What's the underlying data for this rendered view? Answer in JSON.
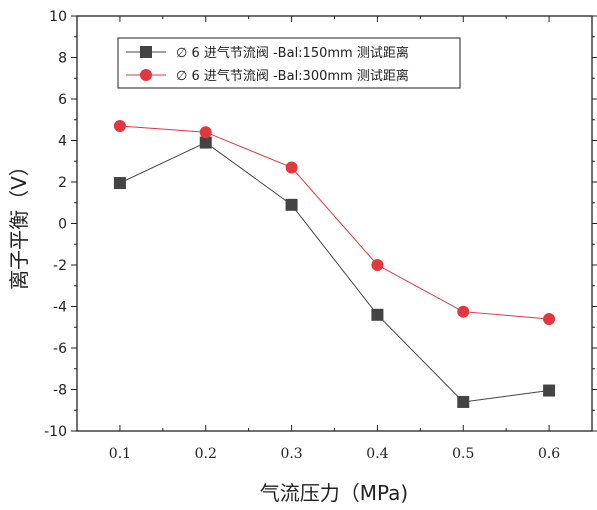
{
  "chart_data": {
    "type": "line",
    "x": [
      0.1,
      0.2,
      0.3,
      0.4,
      0.5,
      0.6
    ],
    "x_tick_labels": [
      "0.1",
      "0.2",
      "0.3",
      "0.4",
      "0.5",
      "0.6"
    ],
    "y_tick_labels": [
      "10",
      "8",
      "6",
      "4",
      "2",
      "0",
      "-2",
      "-4",
      "-6",
      "-8",
      "-10"
    ],
    "xlim": [
      0.05,
      0.65
    ],
    "ylim": [
      -10,
      10
    ],
    "xlabel": "气流压力（MPa)",
    "ylabel": "离子平衡（V）",
    "grid": false,
    "legend_position": "top-left",
    "series": [
      {
        "name": "∅ 6 进气节流阀 -Bal:150mm 测试距离",
        "color": "#444444",
        "marker": "square",
        "values": [
          1.95,
          3.9,
          0.9,
          -4.4,
          -8.6,
          -8.05
        ]
      },
      {
        "name": "∅ 6 进气节流阀 -Bal:300mm 测试距离",
        "color": "#e0383e",
        "marker": "circle",
        "values": [
          4.7,
          4.4,
          2.7,
          -2.0,
          -4.25,
          -4.6
        ]
      }
    ]
  }
}
